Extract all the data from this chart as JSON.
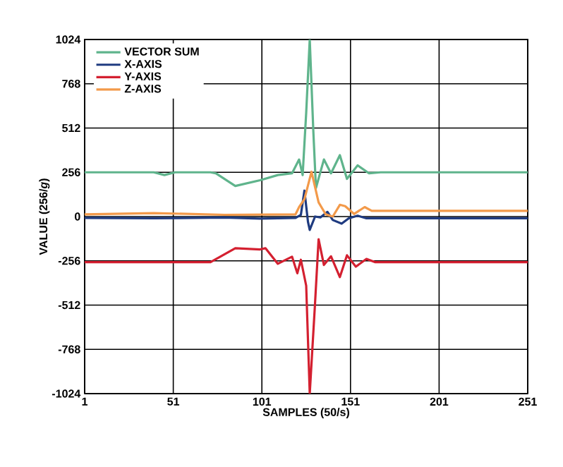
{
  "chart_data": {
    "type": "line",
    "xlabel": "SAMPLES (50/s)",
    "ylabel": "VALUE (256/*g*)",
    "xlim": [
      1,
      251
    ],
    "xticks": [
      1,
      51,
      101,
      151,
      201,
      251
    ],
    "ylim": [
      -1024,
      1024
    ],
    "yticks": [
      -1024,
      -768,
      -512,
      -256,
      0,
      256,
      512,
      768,
      1024
    ],
    "grid": true,
    "legend": "top left",
    "marker": "none",
    "line_style": "solid",
    "series": [
      {
        "name": "VECTOR SUM",
        "color": "#5fb48c",
        "x": [
          1,
          40,
          46,
          52,
          72,
          75,
          86,
          100,
          110,
          118,
          122,
          124,
          126,
          128,
          130,
          131.5,
          136,
          140,
          145,
          149,
          155,
          161.5,
          168,
          200,
          251
        ],
        "values": [
          256,
          256,
          240,
          256,
          256,
          250,
          177,
          210,
          240,
          250,
          330,
          240,
          600,
          1024,
          500,
          165,
          330,
          250,
          355,
          218,
          296,
          250,
          256,
          256,
          256
        ]
      },
      {
        "name": "X-AXIS",
        "color": "#1f3b80",
        "x": [
          1,
          40,
          80,
          100,
          120,
          123,
          125,
          127,
          128,
          131,
          134,
          138,
          141,
          146,
          150,
          155,
          160,
          200,
          251
        ],
        "values": [
          -8,
          -10,
          -6,
          -12,
          -8,
          10,
          150,
          -30,
          -77,
          0,
          -5,
          27,
          -20,
          -41,
          -10,
          5,
          -10,
          -10,
          -10
        ]
      },
      {
        "name": "Y-AXIS",
        "color": "#d42030",
        "x": [
          1,
          40,
          72,
          86,
          100,
          103,
          110,
          118,
          121,
          123,
          126,
          128,
          131,
          133,
          136,
          140,
          145,
          149,
          154,
          160,
          165,
          200,
          251
        ],
        "values": [
          -264,
          -264,
          -264,
          -183,
          -190,
          -183,
          -273,
          -232,
          -328,
          -250,
          -400,
          -1024,
          -500,
          -131,
          -280,
          -230,
          -350,
          -224,
          -290,
          -245,
          -264,
          -264,
          -264
        ]
      },
      {
        "name": "Z-AXIS",
        "color": "#f39a4a",
        "x": [
          1,
          40,
          80,
          120,
          122,
          125,
          129,
          133,
          137,
          141,
          145,
          148,
          153,
          159,
          163,
          200,
          251
        ],
        "values": [
          13,
          20,
          10,
          13,
          55,
          100,
          259,
          82,
          13,
          0,
          68,
          60,
          15,
          55,
          33,
          33,
          33
        ]
      }
    ]
  }
}
